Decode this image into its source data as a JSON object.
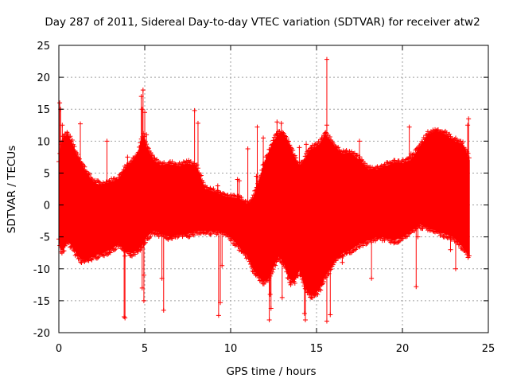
{
  "chart_data": {
    "type": "scatter",
    "title": "Day 287 of 2011, Sidereal Day-to-day VTEC variation (SDTVAR) for receiver atw2",
    "xlabel": "GPS time / hours",
    "ylabel": "SDTVAR / TECUs",
    "xlim": [
      0,
      25
    ],
    "ylim": [
      -20,
      25
    ],
    "x_ticks": [
      "0",
      "5",
      "10",
      "15",
      "20",
      "25"
    ],
    "y_ticks": [
      "-20",
      "-15",
      "-10",
      "-5",
      "0",
      "5",
      "10",
      "15",
      "20",
      "25"
    ],
    "grid": true,
    "marker": "+",
    "series_color": "#ff0000",
    "series": [
      {
        "name": "SDTVAR",
        "envelope": {
          "x": [
            0.0,
            0.1,
            0.25,
            0.5,
            0.8,
            1.0,
            1.3,
            1.6,
            2.0,
            2.5,
            3.0,
            3.5,
            3.8,
            4.2,
            4.6,
            4.9,
            5.1,
            5.5,
            6.0,
            6.5,
            7.0,
            7.5,
            8.0,
            8.5,
            9.0,
            9.5,
            10.0,
            10.5,
            11.0,
            11.3,
            11.6,
            11.9,
            12.2,
            12.5,
            12.8,
            13.1,
            13.4,
            13.7,
            14.0,
            14.3,
            14.6,
            14.9,
            15.2,
            15.5,
            15.8,
            16.1,
            16.5,
            17.0,
            17.5,
            18.0,
            18.5,
            19.0,
            19.5,
            20.0,
            20.5,
            21.0,
            21.5,
            22.0,
            22.5,
            23.0,
            23.5,
            23.9
          ],
          "upper": [
            6.5,
            9.0,
            10.5,
            11.0,
            9.5,
            8.0,
            6.5,
            5.0,
            3.5,
            3.0,
            3.5,
            4.0,
            5.5,
            6.5,
            8.0,
            11.0,
            9.0,
            7.0,
            6.0,
            6.3,
            6.0,
            6.5,
            6.0,
            2.5,
            2.0,
            1.5,
            1.0,
            1.0,
            0.0,
            1.0,
            3.0,
            6.0,
            8.0,
            10.0,
            11.0,
            11.0,
            9.5,
            7.5,
            6.0,
            7.0,
            8.5,
            9.0,
            9.5,
            11.0,
            10.0,
            9.0,
            8.0,
            8.0,
            7.0,
            5.5,
            5.5,
            6.0,
            6.5,
            6.5,
            7.0,
            9.0,
            11.0,
            11.5,
            11.0,
            10.0,
            9.5,
            7.0
          ],
          "lower": [
            -5.0,
            -7.0,
            -7.0,
            -5.5,
            -6.5,
            -7.5,
            -8.5,
            -8.5,
            -8.0,
            -7.5,
            -7.0,
            -6.0,
            -7.0,
            -7.5,
            -7.0,
            -6.0,
            -5.0,
            -4.0,
            -4.5,
            -5.0,
            -4.5,
            -4.5,
            -4.0,
            -4.0,
            -4.0,
            -4.0,
            -5.0,
            -6.5,
            -8.0,
            -10.0,
            -11.0,
            -12.0,
            -11.5,
            -9.5,
            -8.0,
            -9.0,
            -11.5,
            -12.0,
            -10.0,
            -12.5,
            -14.0,
            -14.0,
            -13.0,
            -11.0,
            -10.0,
            -8.5,
            -7.5,
            -7.0,
            -6.0,
            -5.5,
            -5.0,
            -5.0,
            -5.5,
            -5.0,
            -4.0,
            -3.0,
            -3.5,
            -4.0,
            -4.5,
            -5.0,
            -6.5,
            -8.0
          ]
        },
        "outliers": [
          [
            0.05,
            16.0
          ],
          [
            0.1,
            15.0
          ],
          [
            0.2,
            12.5
          ],
          [
            1.25,
            12.7
          ],
          [
            2.8,
            10.0
          ],
          [
            3.8,
            -17.5
          ],
          [
            3.85,
            -17.7
          ],
          [
            3.85,
            -8.0
          ],
          [
            4.0,
            7.5
          ],
          [
            4.8,
            17.0
          ],
          [
            4.9,
            18.0
          ],
          [
            4.85,
            15.0
          ],
          [
            5.0,
            14.5
          ],
          [
            4.95,
            -15.0
          ],
          [
            4.85,
            -13.0
          ],
          [
            4.95,
            -11.0
          ],
          [
            5.1,
            11.0
          ],
          [
            6.1,
            -16.5
          ],
          [
            6.0,
            -11.5
          ],
          [
            6.05,
            6.5
          ],
          [
            7.9,
            14.8
          ],
          [
            8.1,
            12.8
          ],
          [
            8.2,
            4.7
          ],
          [
            9.25,
            3.0
          ],
          [
            9.4,
            -15.3
          ],
          [
            9.3,
            -17.3
          ],
          [
            9.5,
            -9.5
          ],
          [
            10.4,
            4.0
          ],
          [
            10.5,
            3.8
          ],
          [
            11.0,
            8.8
          ],
          [
            11.5,
            4.5
          ],
          [
            11.55,
            12.2
          ],
          [
            11.9,
            10.5
          ],
          [
            12.25,
            -18.0
          ],
          [
            12.35,
            -16.2
          ],
          [
            12.3,
            -14.0
          ],
          [
            12.7,
            13.0
          ],
          [
            12.75,
            11.0
          ],
          [
            12.95,
            12.8
          ],
          [
            13.0,
            -14.5
          ],
          [
            13.5,
            -12.5
          ],
          [
            14.35,
            -18.0
          ],
          [
            14.3,
            -17.0
          ],
          [
            14.05,
            -11.0
          ],
          [
            14.0,
            9.0
          ],
          [
            14.4,
            9.5
          ],
          [
            15.6,
            22.8
          ],
          [
            15.6,
            -18.2
          ],
          [
            15.8,
            -17.2
          ],
          [
            15.6,
            12.5
          ],
          [
            16.5,
            -9.0
          ],
          [
            17.5,
            10.0
          ],
          [
            18.2,
            -11.5
          ],
          [
            18.9,
            4.5
          ],
          [
            20.4,
            12.2
          ],
          [
            20.8,
            -12.8
          ],
          [
            20.5,
            8.0
          ],
          [
            20.9,
            -5.0
          ],
          [
            22.5,
            11.0
          ],
          [
            22.8,
            -7.0
          ],
          [
            23.1,
            -10.0
          ],
          [
            23.85,
            13.5
          ],
          [
            23.8,
            12.5
          ]
        ]
      }
    ]
  }
}
